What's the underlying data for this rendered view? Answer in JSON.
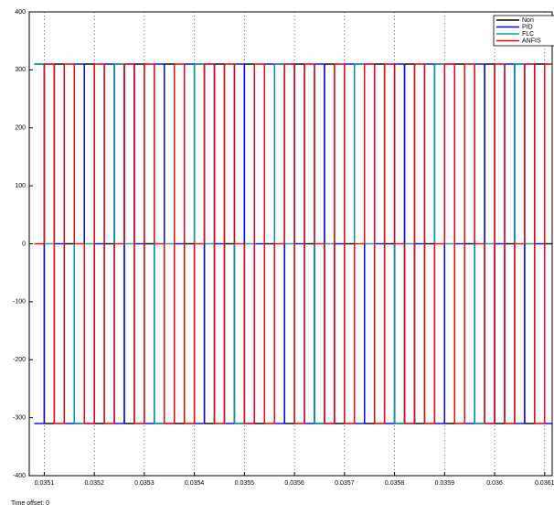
{
  "chart_data": {
    "type": "line",
    "step": true,
    "grid": "x",
    "legend": "upper right",
    "footer": "Time offset: 0",
    "x": [
      0.03508,
      0.0351,
      0.03512,
      0.03514,
      0.03516,
      0.03518,
      0.0352,
      0.03522,
      0.03524,
      0.03526,
      0.03528,
      0.0353,
      0.03532,
      0.03534,
      0.03536,
      0.03538,
      0.0354,
      0.03542,
      0.03544,
      0.03546,
      0.03548,
      0.0355,
      0.03552,
      0.03554,
      0.03556,
      0.03558,
      0.0356,
      0.03562,
      0.03564,
      0.03566,
      0.03568,
      0.0357,
      0.03572,
      0.03574,
      0.03576,
      0.03578,
      0.0358,
      0.03582,
      0.03584,
      0.03586,
      0.03588,
      0.0359,
      0.03592,
      0.03594,
      0.03596,
      0.03598,
      0.036,
      0.03602,
      0.03604,
      0.03606,
      0.03608,
      0.0361
    ],
    "series": [
      {
        "name": "Non",
        "color": "#000000",
        "values": [
          310,
          -310,
          310,
          0,
          -310,
          310,
          -310,
          0,
          310,
          -310,
          310,
          0,
          -310,
          310,
          -310,
          0,
          310,
          -310,
          310,
          0,
          -310,
          310,
          -310,
          0,
          310,
          -310,
          310,
          0,
          -310,
          310,
          -310,
          0,
          310,
          -310,
          310,
          0,
          -310,
          310,
          -310,
          0,
          310,
          -310,
          310,
          0,
          -310,
          310,
          -310,
          0,
          310,
          -310,
          310,
          0
        ]
      },
      {
        "name": "PID",
        "color": "#0000ff",
        "values": [
          -310,
          310,
          0,
          -310,
          310,
          -310,
          0,
          310,
          -310,
          310,
          0,
          -310,
          310,
          -310,
          0,
          310,
          -310,
          310,
          0,
          -310,
          310,
          -310,
          0,
          310,
          -310,
          310,
          0,
          -310,
          310,
          -310,
          0,
          310,
          -310,
          310,
          0,
          -310,
          310,
          -310,
          0,
          310,
          -310,
          310,
          0,
          -310,
          310,
          -310,
          0,
          310,
          -310,
          310,
          0,
          -310
        ]
      },
      {
        "name": "FLC",
        "color": "#00a0a0",
        "values": [
          310,
          0,
          -310,
          310,
          -310,
          0,
          310,
          -310,
          310,
          0,
          -310,
          310,
          -310,
          0,
          310,
          -310,
          310,
          0,
          -310,
          310,
          -310,
          0,
          310,
          -310,
          310,
          0,
          -310,
          310,
          -310,
          0,
          310,
          -310,
          310,
          0,
          -310,
          310,
          -310,
          0,
          310,
          -310,
          310,
          0,
          -310,
          310,
          -310,
          0,
          310,
          -310,
          310,
          0,
          -310,
          310
        ]
      },
      {
        "name": "ANFIS",
        "color": "#ff0000",
        "values": [
          0,
          310,
          -310,
          310,
          0,
          -310,
          310,
          -310,
          0,
          310,
          -310,
          310,
          0,
          -310,
          310,
          -310,
          0,
          310,
          -310,
          310,
          0,
          -310,
          310,
          -310,
          0,
          310,
          -310,
          310,
          0,
          -310,
          310,
          -310,
          0,
          310,
          -310,
          310,
          0,
          -310,
          310,
          -310,
          0,
          310,
          -310,
          310,
          0,
          -310,
          310,
          -310,
          0,
          310,
          -310,
          310
        ]
      }
    ],
    "xlim": [
      0.03507,
      0.036115
    ],
    "xticks": [
      0.0351,
      0.0352,
      0.0353,
      0.0354,
      0.0355,
      0.0356,
      0.0357,
      0.0358,
      0.0359,
      0.036,
      0.0361
    ],
    "ylim": [
      -400,
      400
    ],
    "yticks": [
      -400,
      -300,
      -200,
      -100,
      0,
      100,
      200,
      300,
      400
    ]
  }
}
